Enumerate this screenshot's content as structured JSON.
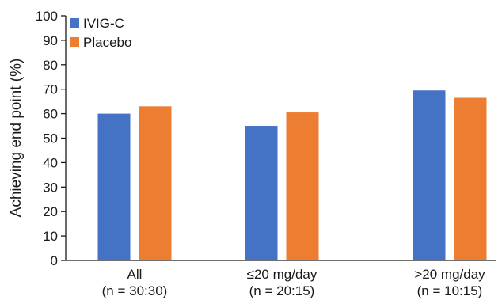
{
  "chart_data": {
    "type": "bar",
    "categories": [
      [
        "All",
        "(n = 30:30)"
      ],
      [
        "≤20 mg/day",
        "(n = 20:15)"
      ],
      [
        ">20 mg/day",
        "(n = 10:15)"
      ]
    ],
    "series": [
      {
        "name": "IVIG-C",
        "values": [
          60,
          55,
          69.5
        ],
        "color": "#4472C4"
      },
      {
        "name": "Placebo",
        "values": [
          63,
          60.5,
          66.5
        ],
        "color": "#ED7D31"
      }
    ],
    "ylabel": "Achieving end point (%)",
    "xlabel": "",
    "ylim": [
      0,
      100
    ],
    "yticks": [
      0,
      10,
      20,
      30,
      40,
      50,
      60,
      70,
      80,
      90,
      100
    ],
    "grid": false,
    "legend_position": "top-left"
  }
}
